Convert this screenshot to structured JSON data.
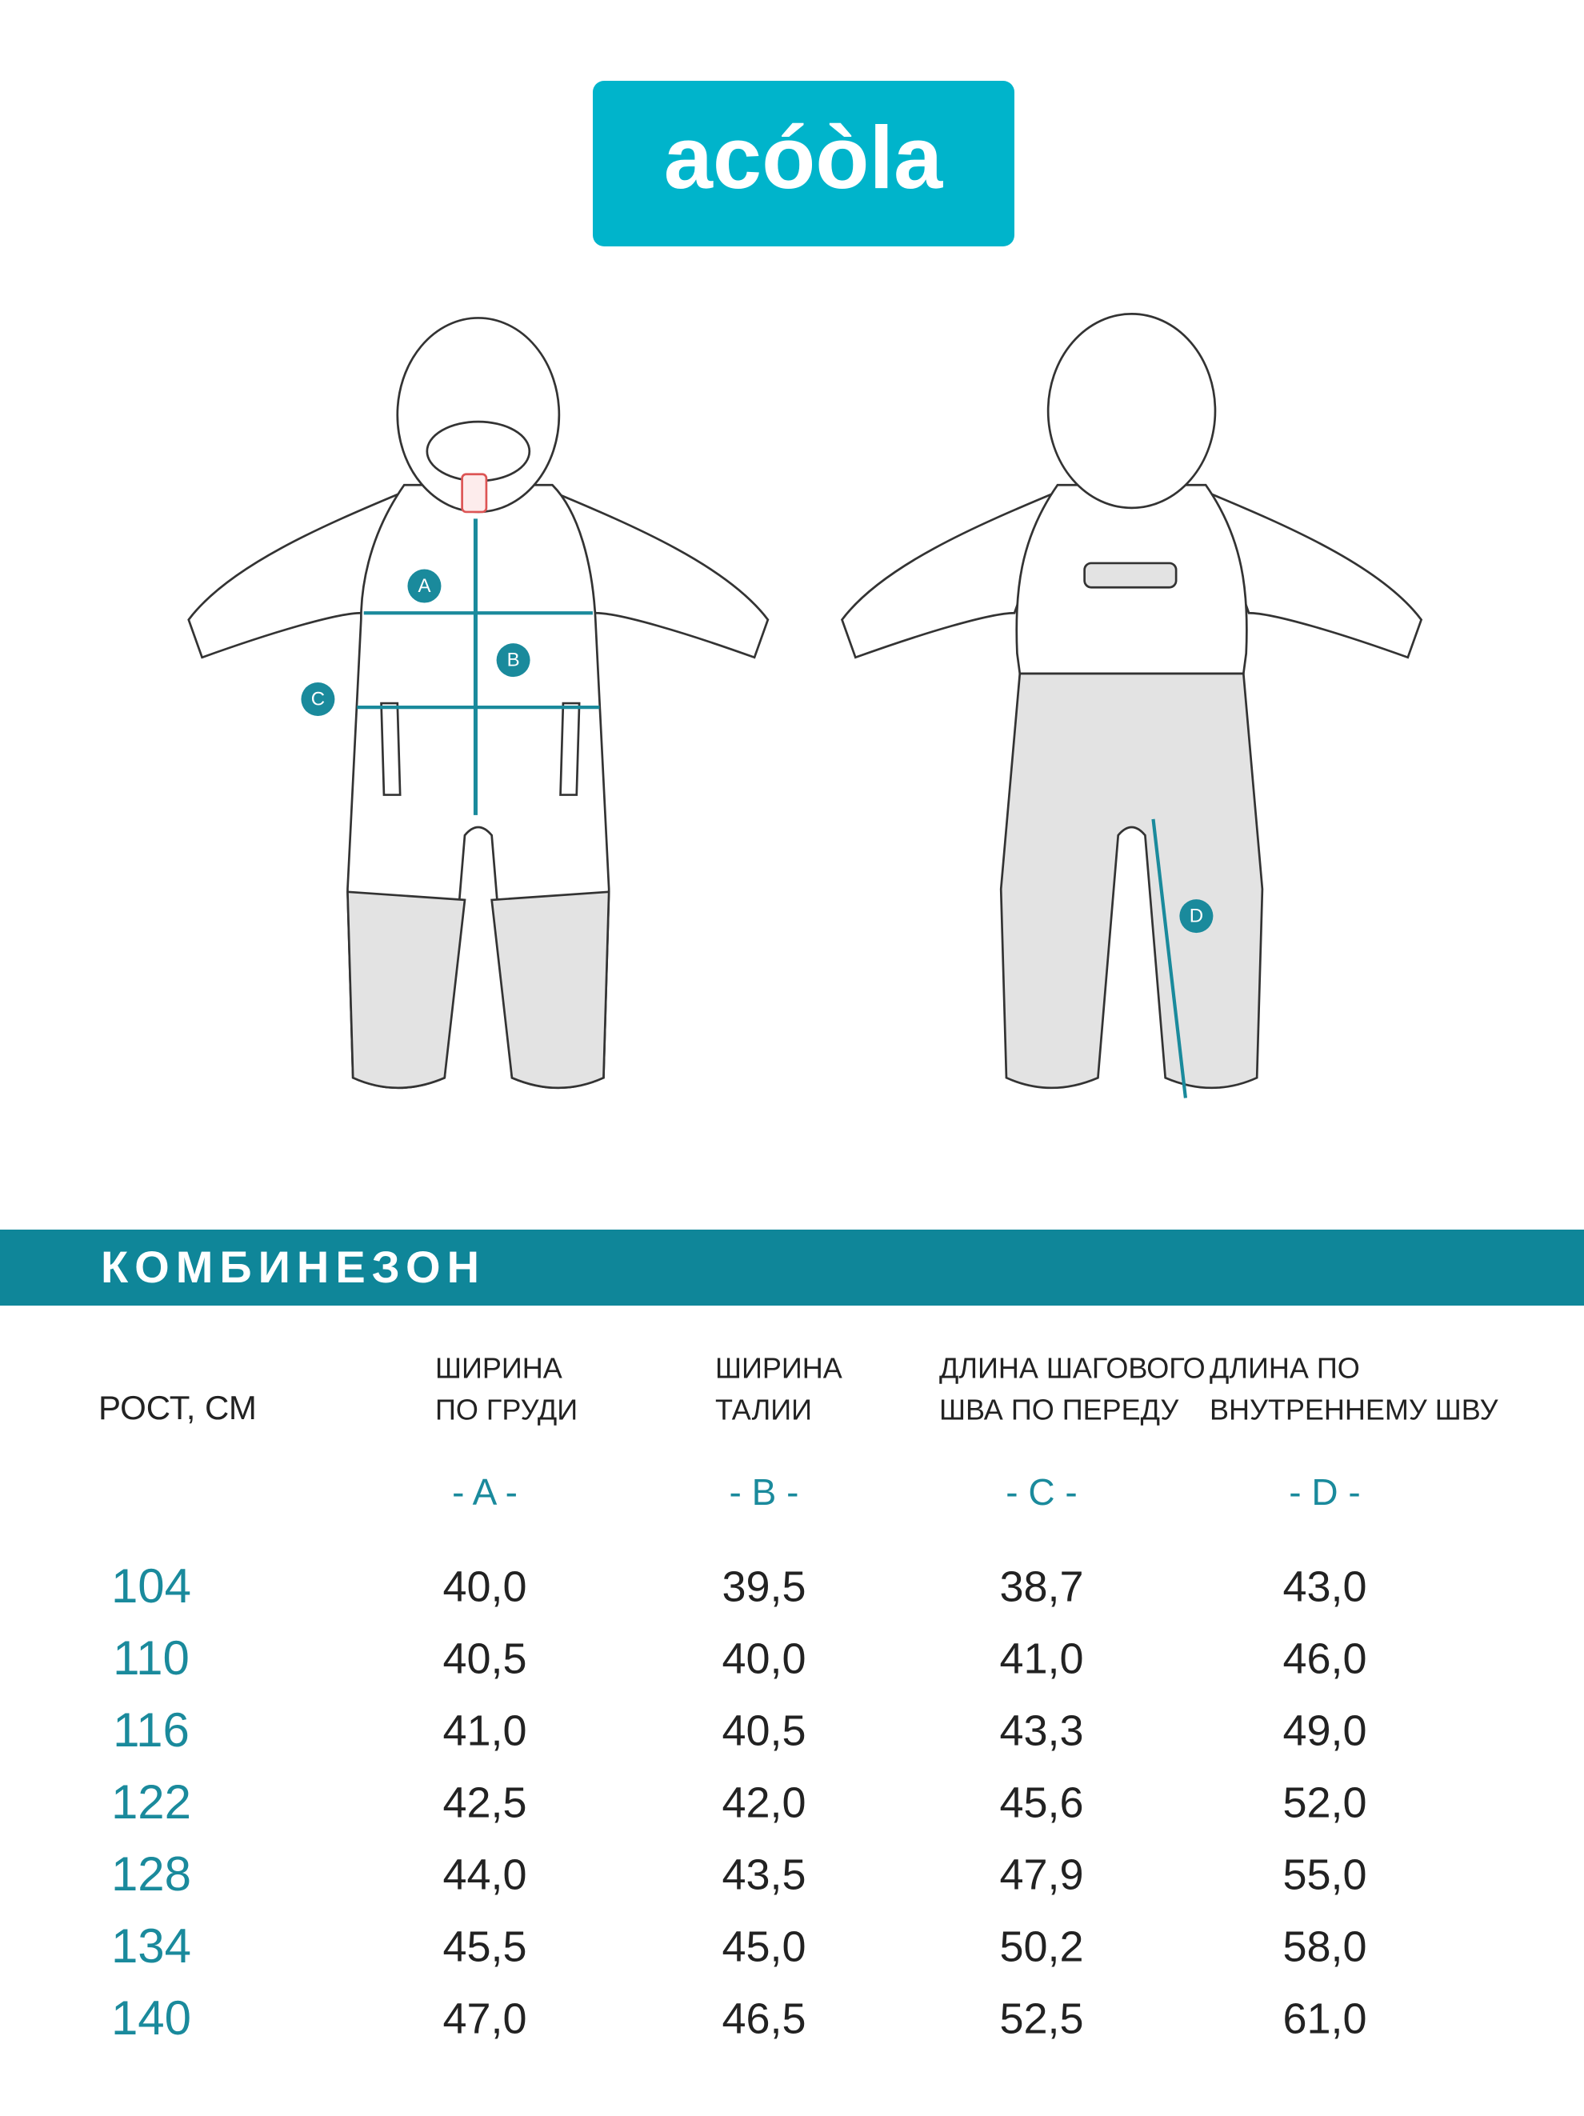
{
  "logo": "acóòla",
  "illustration": {
    "markers": [
      "A",
      "B",
      "C",
      "D"
    ]
  },
  "title": "КОМБИНЕЗОН",
  "table": {
    "headers": [
      [
        "РОСТ, СМ"
      ],
      [
        "ШИРИНА",
        "ПО ГРУДИ"
      ],
      [
        "ШИРИНА",
        "ТАЛИИ"
      ],
      [
        "ДЛИНА ШАГОВОГО",
        "ШВА ПО ПЕРЕДУ"
      ],
      [
        "ДЛИНА ПО",
        "ВНУТРЕННЕМУ ШВУ"
      ]
    ],
    "codes": [
      "- A -",
      "- B -",
      "- C -",
      "- D -"
    ],
    "rows": [
      [
        "104",
        "40,0",
        "39,5",
        "38,7",
        "43,0"
      ],
      [
        "110",
        "40,5",
        "40,0",
        "41,0",
        "46,0"
      ],
      [
        "116",
        "41,0",
        "40,5",
        "43,3",
        "49,0"
      ],
      [
        "122",
        "42,5",
        "42,0",
        "45,6",
        "52,0"
      ],
      [
        "128",
        "44,0",
        "43,5",
        "47,9",
        "55,0"
      ],
      [
        "134",
        "45,5",
        "45,0",
        "50,2",
        "58,0"
      ],
      [
        "140",
        "47,0",
        "46,5",
        "52,5",
        "61,0"
      ]
    ]
  }
}
